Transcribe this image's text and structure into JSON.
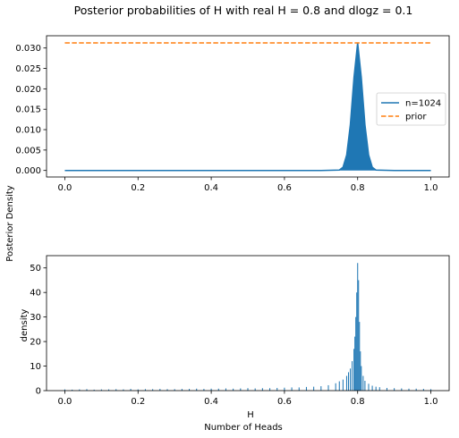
{
  "figure": {
    "suptitle": "Posterior probabilities of H with real H = 0.8 and dlogz = 0.1",
    "ylabel": "Posterior Density",
    "xlabel": "Number of Heads"
  },
  "colors": {
    "blue": "#1f77b4",
    "orange": "#ff7f0e",
    "axis": "#000000"
  },
  "chart_data": [
    {
      "type": "line",
      "xlabel": "",
      "ylabel": "",
      "xlim": [
        -0.05,
        1.05
      ],
      "ylim": [
        -0.0016,
        0.033
      ],
      "xticks": [
        0.0,
        0.2,
        0.4,
        0.6,
        0.8,
        1.0
      ],
      "xtick_labels": [
        "0.0",
        "0.2",
        "0.4",
        "0.6",
        "0.8",
        "1.0"
      ],
      "yticks": [
        0.0,
        0.005,
        0.01,
        0.015,
        0.02,
        0.025,
        0.03
      ],
      "ytick_labels": [
        "0.000",
        "0.005",
        "0.010",
        "0.015",
        "0.020",
        "0.025",
        "0.030"
      ],
      "legend": {
        "location": "center-right",
        "entries": [
          "n=1024",
          "prior"
        ]
      },
      "series": [
        {
          "name": "n=1024",
          "style": "solid",
          "color": "#1f77b4",
          "x": [
            0.0,
            0.7,
            0.75,
            0.76,
            0.77,
            0.78,
            0.79,
            0.8,
            0.81,
            0.82,
            0.83,
            0.84,
            0.85,
            0.9,
            1.0
          ],
          "y": [
            0.0,
            0.0,
            0.0001,
            0.0008,
            0.0038,
            0.0112,
            0.0228,
            0.0313,
            0.0228,
            0.0112,
            0.0038,
            0.0008,
            0.0001,
            0.0,
            0.0
          ]
        },
        {
          "name": "prior",
          "style": "dashed",
          "color": "#ff7f0e",
          "x": [
            0.0,
            1.0
          ],
          "y": [
            0.03125,
            0.03125
          ]
        }
      ]
    },
    {
      "type": "bar",
      "title": "",
      "xlabel": "H",
      "ylabel": "density",
      "xlim": [
        -0.05,
        1.05
      ],
      "ylim": [
        0,
        55
      ],
      "xticks": [
        0.0,
        0.2,
        0.4,
        0.6,
        0.8,
        1.0
      ],
      "xtick_labels": [
        "0.0",
        "0.2",
        "0.4",
        "0.6",
        "0.8",
        "1.0"
      ],
      "yticks": [
        0,
        10,
        20,
        30,
        40,
        50
      ],
      "ytick_labels": [
        "0",
        "10",
        "20",
        "30",
        "40",
        "50"
      ],
      "bin_width": 0.0025,
      "x": [
        0.0,
        0.02,
        0.04,
        0.06,
        0.08,
        0.1,
        0.12,
        0.14,
        0.16,
        0.18,
        0.2,
        0.22,
        0.24,
        0.26,
        0.28,
        0.3,
        0.32,
        0.34,
        0.36,
        0.38,
        0.4,
        0.42,
        0.44,
        0.46,
        0.48,
        0.5,
        0.52,
        0.54,
        0.56,
        0.58,
        0.6,
        0.62,
        0.64,
        0.66,
        0.68,
        0.7,
        0.72,
        0.74,
        0.75,
        0.76,
        0.77,
        0.775,
        0.78,
        0.785,
        0.79,
        0.7925,
        0.795,
        0.7975,
        0.8,
        0.8025,
        0.805,
        0.8075,
        0.81,
        0.815,
        0.82,
        0.83,
        0.84,
        0.85,
        0.86,
        0.88,
        0.9,
        0.92,
        0.94,
        0.96,
        0.98,
        1.0
      ],
      "values": [
        0.5,
        0.4,
        0.5,
        0.6,
        0.4,
        0.5,
        0.5,
        0.6,
        0.5,
        0.7,
        0.5,
        0.6,
        0.6,
        0.7,
        0.6,
        0.6,
        0.7,
        0.7,
        0.8,
        0.7,
        0.8,
        0.8,
        0.9,
        0.8,
        0.9,
        1.0,
        0.9,
        1.0,
        1.0,
        1.1,
        1.2,
        1.3,
        1.3,
        1.5,
        1.6,
        1.8,
        2.2,
        3.0,
        3.8,
        4.5,
        6.0,
        7.5,
        9.0,
        12.0,
        17.0,
        22.0,
        30.0,
        40.0,
        52.0,
        45.0,
        28.0,
        16.0,
        10.0,
        6.0,
        4.0,
        2.8,
        2.0,
        1.6,
        1.4,
        1.1,
        1.0,
        0.9,
        0.8,
        0.8,
        0.7,
        0.6
      ]
    }
  ]
}
